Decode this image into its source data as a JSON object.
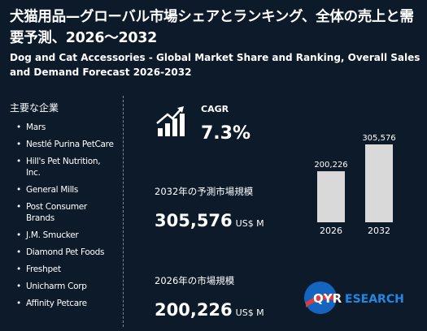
{
  "header": {
    "title_ja": "犬猫用品—グローバル市場シェアとランキング、全体の売上と需要予測、2026～2032",
    "title_en": "Dog and Cat Accessories - Global Market Share and Ranking, Overall Sales and Demand Forecast 2026-2032"
  },
  "companies": {
    "heading": "主要な企業",
    "items": [
      "Mars",
      "Nestlé Purina PetCare",
      "Hill's Pet Nutrition, Inc.",
      "General Mills",
      "Post Consumer Brands",
      "J.M. Smucker",
      "Diamond Pet Foods",
      "Freshpet",
      "Unicharm Corp",
      "Affinity Petcare"
    ]
  },
  "cagr": {
    "label": "CAGR",
    "value": "7.3%"
  },
  "forecast": {
    "label": "2032年の予測市場規模",
    "value": "305,576",
    "unit": "US$ M"
  },
  "current": {
    "label": "2026年の市場規模",
    "value": "200,226",
    "unit": "US$ M"
  },
  "chart_data": {
    "type": "bar",
    "categories": [
      "2026",
      "2032"
    ],
    "values": [
      200226,
      305576
    ],
    "value_labels": [
      "200,226",
      "305,576"
    ],
    "bar_color": "#d9d9d9"
  },
  "logo": {
    "brand": "QYRESEARCH",
    "part1": "QYR",
    "part2": "ESEARCH",
    "colors": {
      "primary": "#1565c0",
      "accent": "#e53935"
    }
  },
  "icons": {
    "growth": "bar-growth-arrow-icon"
  }
}
